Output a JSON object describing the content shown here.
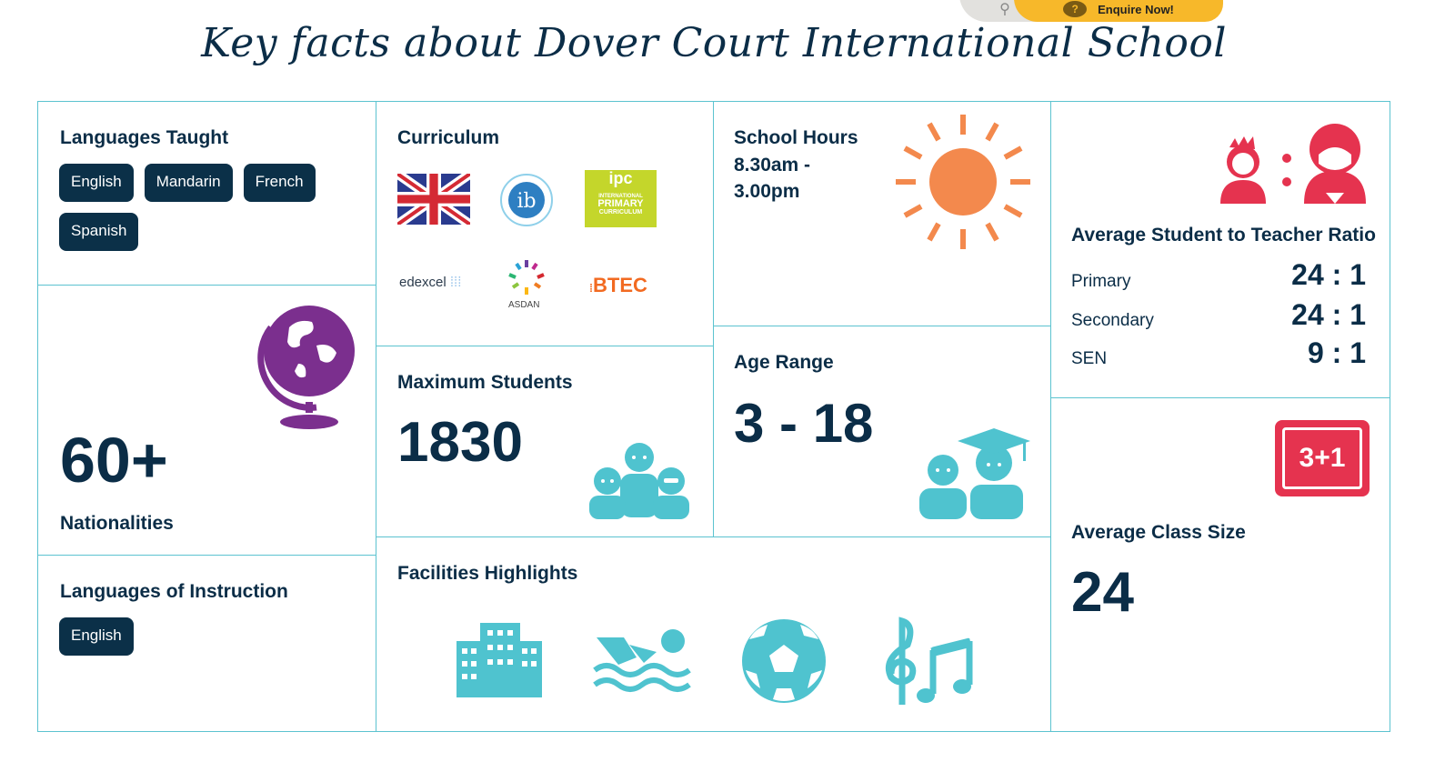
{
  "header": {
    "title": "Key facts about Dover Court International School",
    "enquire_label": "Enquire Now!"
  },
  "languages_taught": {
    "heading": "Languages Taught",
    "items": [
      "English",
      "Mandarin",
      "French",
      "Spanish"
    ]
  },
  "nationalities": {
    "value": "60+",
    "label": "Nationalities"
  },
  "languages_instruction": {
    "heading": "Languages of Instruction",
    "items": [
      "English"
    ]
  },
  "curriculum": {
    "heading": "Curriculum",
    "logos": [
      "uk-flag",
      "ib-logo",
      "ipc-logo",
      "edexcel-logo",
      "asdan-logo",
      "btec-logo"
    ],
    "ipc_text": [
      "ipc",
      "INTERNATIONAL",
      "PRIMARY",
      "CURRICULUM"
    ],
    "edexcel": "edexcel",
    "asdan": "ASDAN",
    "btec": "BTEC"
  },
  "school_hours": {
    "heading": "School Hours",
    "line1": "8.30am -",
    "line2": "3.00pm"
  },
  "max_students": {
    "heading": "Maximum Students",
    "value": "1830"
  },
  "age_range": {
    "heading": "Age Range",
    "value": "3 - 18"
  },
  "ratio": {
    "heading": "Average Student to Teacher Ratio",
    "rows": [
      {
        "label": "Primary",
        "value": "24 : 1"
      },
      {
        "label": "Secondary",
        "value": "24 : 1"
      },
      {
        "label": "SEN",
        "value": "9 : 1"
      }
    ]
  },
  "class_size": {
    "heading": "Average Class Size",
    "value": "24",
    "icon_text": "3+1"
  },
  "facilities": {
    "heading": "Facilities Highlights",
    "icons": [
      "building-icon",
      "swimming-icon",
      "football-icon",
      "music-icon"
    ]
  },
  "colors": {
    "navy": "#0b3048",
    "teal": "#4fc3cf",
    "red": "#e5334f",
    "purple": "#7b2f8e",
    "orange": "#f3894d",
    "border": "#5cc3d0"
  }
}
